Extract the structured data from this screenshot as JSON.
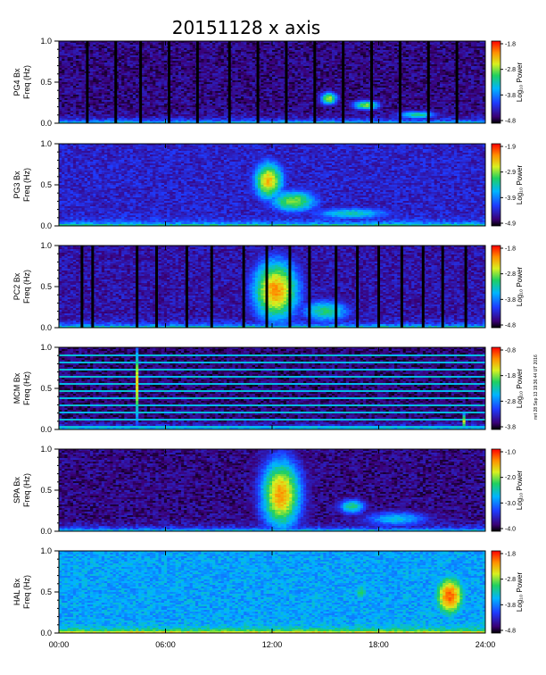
{
  "chart_data": {
    "type": "heatmap",
    "title": "20151128 x axis",
    "xlabel": "",
    "x_ticks": [
      "00:00",
      "06:00",
      "12:00",
      "18:00",
      "24:00"
    ],
    "xlim_hours": [
      0,
      24
    ],
    "ylim": [
      0.0,
      1.0
    ],
    "y_ticks": [
      "0.0",
      "0.5",
      "1.0"
    ],
    "side_note": "mrt 28 Sep 13 19:36:44 UT 2016",
    "panels": [
      {
        "station": "PG4",
        "ylabel_line1": "PG4  Bx",
        "ylabel_line2": "Freq (Hz)",
        "colorbar_title": "Log₁₀ Power",
        "colorbar_ticks": [
          "-1.8",
          "-2.8",
          "-3.8",
          "-4.8"
        ],
        "background_level": 0.1,
        "data_gaps_hours": [
          1.6,
          3.2,
          4.6,
          6.2,
          7.8,
          9.6,
          11.2,
          12.8,
          14.4,
          16.0,
          17.6,
          19.2,
          20.8,
          22.4
        ],
        "features": [
          {
            "t": 15.2,
            "f": 0.3,
            "dt": 0.5,
            "df": 0.08,
            "level": 0.7
          },
          {
            "t": 17.3,
            "f": 0.22,
            "dt": 0.8,
            "df": 0.06,
            "level": 0.65
          },
          {
            "t": 20.2,
            "f": 0.1,
            "dt": 1.2,
            "df": 0.05,
            "level": 0.55
          }
        ]
      },
      {
        "station": "PG3",
        "ylabel_line1": "PG3  Bx",
        "ylabel_line2": "Freq (Hz)",
        "colorbar_title": "Log₁₀ Power",
        "colorbar_ticks": [
          "-1.9",
          "-2.9",
          "-3.9",
          "-4.9"
        ],
        "background_level": 0.18,
        "data_gaps_hours": [],
        "features": [
          {
            "t": 11.8,
            "f": 0.55,
            "dt": 0.9,
            "df": 0.25,
            "level": 0.8
          },
          {
            "t": 13.2,
            "f": 0.3,
            "dt": 1.5,
            "df": 0.15,
            "level": 0.65
          },
          {
            "t": 16.5,
            "f": 0.15,
            "dt": 2.5,
            "df": 0.08,
            "level": 0.5
          }
        ]
      },
      {
        "station": "PC2",
        "ylabel_line1": "PC2  Bx",
        "ylabel_line2": "Freq (Hz)",
        "colorbar_title": "Log₁₀ Power",
        "colorbar_ticks": [
          "-1.8",
          "-2.8",
          "-3.8",
          "-4.8"
        ],
        "background_level": 0.14,
        "data_gaps_hours": [
          1.3,
          1.9,
          4.4,
          5.5,
          7.2,
          8.6,
          10.4,
          11.7,
          13.0,
          14.1,
          15.6,
          16.8,
          18.0,
          19.3,
          20.5,
          21.6,
          22.9
        ],
        "features": [
          {
            "t": 12.2,
            "f": 0.45,
            "dt": 1.4,
            "df": 0.4,
            "level": 0.85
          },
          {
            "t": 15.0,
            "f": 0.2,
            "dt": 1.5,
            "df": 0.15,
            "level": 0.55
          }
        ]
      },
      {
        "station": "MCM",
        "ylabel_line1": "MCM  Bx",
        "ylabel_line2": "Freq (Hz)",
        "colorbar_title": "Log₁₀ Power",
        "colorbar_ticks": [
          "-0.8",
          "-1.8",
          "-2.8",
          "-3.8"
        ],
        "background_level": 0.08,
        "data_gaps_hours": [],
        "harmonics": true,
        "features": [
          {
            "t": 4.4,
            "f": 0.55,
            "dt": 0.1,
            "df": 0.45,
            "level": 0.75
          },
          {
            "t": 22.8,
            "f": 0.1,
            "dt": 0.1,
            "df": 0.1,
            "level": 0.7
          }
        ]
      },
      {
        "station": "SPA",
        "ylabel_line1": "SPA  Bx",
        "ylabel_line2": "Freq (Hz)",
        "colorbar_title": "Log₁₀ Power",
        "colorbar_ticks": [
          "-1.0",
          "-2.0",
          "-3.0",
          "-4.0"
        ],
        "background_level": 0.1,
        "data_gaps_hours": [],
        "features": [
          {
            "t": 12.5,
            "f": 0.45,
            "dt": 1.2,
            "df": 0.45,
            "level": 0.85
          },
          {
            "t": 16.5,
            "f": 0.3,
            "dt": 0.8,
            "df": 0.1,
            "level": 0.55
          },
          {
            "t": 19.0,
            "f": 0.15,
            "dt": 2.0,
            "df": 0.1,
            "level": 0.45
          }
        ]
      },
      {
        "station": "HAL",
        "ylabel_line1": "HAL  Bx",
        "ylabel_line2": "Freq (Hz)",
        "colorbar_title": "Log₁₀ Power",
        "colorbar_ticks": [
          "-1.8",
          "-2.8",
          "-3.8",
          "-4.8"
        ],
        "background_level": 0.4,
        "data_gaps_hours": [],
        "features": [
          {
            "t": 22.0,
            "f": 0.45,
            "dt": 1.0,
            "df": 0.3,
            "level": 0.9
          },
          {
            "t": 17.0,
            "f": 0.5,
            "dt": 0.6,
            "df": 0.15,
            "level": 0.55
          }
        ]
      }
    ]
  }
}
